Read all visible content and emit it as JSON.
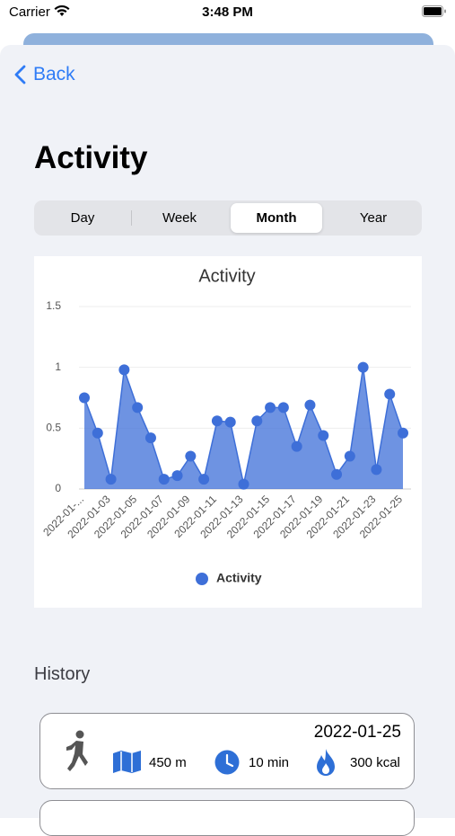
{
  "status_bar": {
    "carrier": "Carrier",
    "time": "3:48 PM"
  },
  "nav": {
    "back": "Back"
  },
  "header": {
    "title": "Activity"
  },
  "segments": {
    "items": [
      "Day",
      "Week",
      "Month",
      "Year"
    ],
    "selected": "Month"
  },
  "chart_data": {
    "type": "area",
    "title": "Activity",
    "categories": [
      "2022-01-...",
      null,
      "2022-01-03",
      null,
      "2022-01-05",
      null,
      "2022-01-07",
      null,
      "2022-01-09",
      null,
      "2022-01-11",
      null,
      "2022-01-13",
      null,
      "2022-01-15",
      null,
      "2022-01-17",
      null,
      "2022-01-19",
      null,
      "2022-01-21",
      null,
      "2022-01-23",
      null,
      "2022-01-25"
    ],
    "series": [
      {
        "name": "Activity",
        "color": "#3e6fd8",
        "values": [
          0.75,
          0.46,
          0.08,
          0.98,
          0.67,
          0.42,
          0.08,
          0.11,
          0.27,
          0.08,
          0.56,
          0.55,
          0.04,
          0.56,
          0.67,
          0.67,
          0.35,
          0.69,
          0.44,
          0.12,
          0.27,
          1.0,
          0.16,
          0.78,
          0.46
        ]
      }
    ],
    "ylim": [
      0,
      1.5
    ],
    "yticks": [
      0,
      0.5,
      1,
      1.5
    ],
    "grid": true,
    "legend": "bottom"
  },
  "history": {
    "title": "History",
    "items": [
      {
        "date": "2022-01-25",
        "distance": "450 m",
        "duration": "10 min",
        "energy": "300 kcal"
      }
    ]
  }
}
